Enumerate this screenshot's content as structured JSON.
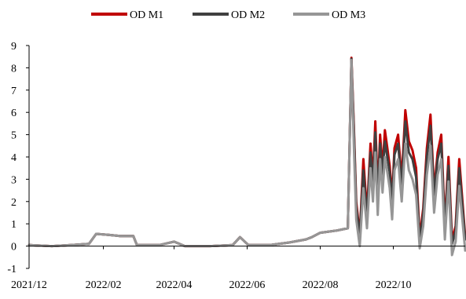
{
  "chart_data": {
    "type": "line",
    "title": "",
    "xlabel": "",
    "ylabel": "",
    "ylim": [
      -1,
      9
    ],
    "yticks": [
      -1,
      0,
      1,
      2,
      3,
      4,
      5,
      6,
      7,
      8,
      9
    ],
    "ytick_labels": [
      "-1",
      "0",
      "1",
      "2",
      "3",
      "4",
      "5",
      "6",
      "7",
      "8",
      "9"
    ],
    "xlim": [
      "2021-12-01",
      "2022-11-30"
    ],
    "xticks": [
      "2021-12-01",
      "2022-02-01",
      "2022-04-01",
      "2022-06-01",
      "2022-08-01",
      "2022-10-01"
    ],
    "xtick_labels": [
      "2021/12",
      "2022/02",
      "2022/04",
      "2022/06",
      "2022/08",
      "2022/10"
    ],
    "legend": {
      "position": "top-center"
    },
    "grid": false,
    "series": [
      {
        "name": "OD M1",
        "color": "#c00000",
        "x": [
          "2021-12-01",
          "2021-12-20",
          "2022-01-05",
          "2022-01-20",
          "2022-01-26",
          "2022-02-06",
          "2022-02-15",
          "2022-02-26",
          "2022-03-01",
          "2022-03-20",
          "2022-04-01",
          "2022-04-10",
          "2022-05-01",
          "2022-05-20",
          "2022-05-26",
          "2022-06-02",
          "2022-06-20",
          "2022-07-05",
          "2022-07-20",
          "2022-07-25",
          "2022-08-01",
          "2022-08-15",
          "2022-08-24",
          "2022-08-27",
          "2022-08-29",
          "2022-08-31",
          "2022-09-03",
          "2022-09-06",
          "2022-09-09",
          "2022-09-12",
          "2022-09-14",
          "2022-09-16",
          "2022-09-18",
          "2022-09-20",
          "2022-09-22",
          "2022-09-24",
          "2022-09-26",
          "2022-09-28",
          "2022-09-30",
          "2022-10-02",
          "2022-10-05",
          "2022-10-08",
          "2022-10-11",
          "2022-10-14",
          "2022-10-17",
          "2022-10-20",
          "2022-10-23",
          "2022-10-26",
          "2022-10-29",
          "2022-11-01",
          "2022-11-04",
          "2022-11-07",
          "2022-11-10",
          "2022-11-13",
          "2022-11-16",
          "2022-11-19",
          "2022-11-22",
          "2022-11-25",
          "2022-11-30"
        ],
        "values": [
          0.05,
          0.0,
          0.05,
          0.1,
          0.55,
          0.5,
          0.45,
          0.45,
          0.05,
          0.05,
          0.2,
          0.0,
          0.0,
          0.05,
          0.4,
          0.05,
          0.05,
          0.15,
          0.3,
          0.4,
          0.6,
          0.7,
          0.8,
          8.45,
          5.5,
          2.0,
          0.5,
          3.9,
          1.5,
          4.6,
          3.0,
          5.6,
          2.4,
          5.0,
          3.5,
          5.2,
          4.4,
          3.6,
          2.2,
          4.4,
          5.0,
          3.0,
          6.1,
          4.7,
          4.3,
          3.5,
          0.4,
          1.7,
          4.4,
          5.9,
          2.5,
          4.2,
          5.0,
          1.0,
          4.0,
          0.3,
          0.9,
          3.9,
          0.4
        ]
      },
      {
        "name": "OD M2",
        "color": "#404040",
        "x": [
          "2021-12-01",
          "2021-12-20",
          "2022-01-05",
          "2022-01-20",
          "2022-01-26",
          "2022-02-06",
          "2022-02-15",
          "2022-02-26",
          "2022-03-01",
          "2022-03-20",
          "2022-04-01",
          "2022-04-10",
          "2022-05-01",
          "2022-05-20",
          "2022-05-26",
          "2022-06-02",
          "2022-06-20",
          "2022-07-05",
          "2022-07-20",
          "2022-07-25",
          "2022-08-01",
          "2022-08-15",
          "2022-08-24",
          "2022-08-27",
          "2022-08-29",
          "2022-08-31",
          "2022-09-03",
          "2022-09-06",
          "2022-09-09",
          "2022-09-12",
          "2022-09-14",
          "2022-09-16",
          "2022-09-18",
          "2022-09-20",
          "2022-09-22",
          "2022-09-24",
          "2022-09-26",
          "2022-09-28",
          "2022-09-30",
          "2022-10-02",
          "2022-10-05",
          "2022-10-08",
          "2022-10-11",
          "2022-10-14",
          "2022-10-17",
          "2022-10-20",
          "2022-10-23",
          "2022-10-26",
          "2022-10-29",
          "2022-11-01",
          "2022-11-04",
          "2022-11-07",
          "2022-11-10",
          "2022-11-13",
          "2022-11-16",
          "2022-11-19",
          "2022-11-22",
          "2022-11-25",
          "2022-11-30"
        ],
        "values": [
          0.05,
          0.0,
          0.05,
          0.1,
          0.55,
          0.5,
          0.45,
          0.45,
          0.05,
          0.05,
          0.2,
          0.0,
          0.0,
          0.05,
          0.4,
          0.05,
          0.05,
          0.15,
          0.3,
          0.4,
          0.6,
          0.7,
          0.8,
          8.4,
          5.3,
          1.8,
          0.4,
          3.4,
          1.3,
          4.2,
          2.7,
          5.1,
          2.1,
          4.6,
          3.2,
          4.7,
          4.0,
          3.3,
          2.0,
          4.1,
          4.6,
          2.7,
          5.6,
          4.2,
          3.9,
          3.1,
          0.2,
          1.5,
          4.0,
          5.4,
          2.3,
          3.9,
          4.6,
          0.8,
          3.6,
          0.1,
          0.7,
          3.5,
          0.3
        ]
      },
      {
        "name": "OD M3",
        "color": "#969696",
        "x": [
          "2021-12-01",
          "2021-12-20",
          "2022-01-05",
          "2022-01-20",
          "2022-01-26",
          "2022-02-06",
          "2022-02-15",
          "2022-02-26",
          "2022-03-01",
          "2022-03-20",
          "2022-04-01",
          "2022-04-10",
          "2022-05-01",
          "2022-05-20",
          "2022-05-26",
          "2022-06-02",
          "2022-06-20",
          "2022-07-05",
          "2022-07-20",
          "2022-07-25",
          "2022-08-01",
          "2022-08-15",
          "2022-08-24",
          "2022-08-27",
          "2022-08-29",
          "2022-08-31",
          "2022-09-03",
          "2022-09-06",
          "2022-09-09",
          "2022-09-12",
          "2022-09-14",
          "2022-09-16",
          "2022-09-18",
          "2022-09-20",
          "2022-09-22",
          "2022-09-24",
          "2022-09-26",
          "2022-09-28",
          "2022-09-30",
          "2022-10-02",
          "2022-10-05",
          "2022-10-08",
          "2022-10-11",
          "2022-10-14",
          "2022-10-17",
          "2022-10-20",
          "2022-10-23",
          "2022-10-26",
          "2022-10-29",
          "2022-11-01",
          "2022-11-04",
          "2022-11-07",
          "2022-11-10",
          "2022-11-13",
          "2022-11-16",
          "2022-11-19",
          "2022-11-22",
          "2022-11-25",
          "2022-11-30"
        ],
        "values": [
          0.05,
          0.0,
          0.05,
          0.1,
          0.55,
          0.5,
          0.45,
          0.45,
          0.05,
          0.05,
          0.2,
          0.0,
          0.0,
          0.05,
          0.4,
          0.05,
          0.05,
          0.15,
          0.3,
          0.4,
          0.6,
          0.7,
          0.8,
          8.35,
          4.6,
          1.2,
          0.0,
          2.6,
          0.8,
          3.5,
          2.0,
          4.2,
          1.4,
          3.9,
          2.4,
          4.0,
          3.3,
          2.6,
          1.2,
          3.4,
          3.9,
          2.0,
          4.6,
          3.4,
          3.0,
          2.3,
          -0.1,
          0.9,
          3.2,
          4.5,
          1.5,
          3.2,
          3.9,
          0.3,
          2.9,
          -0.4,
          0.2,
          2.7,
          -0.2
        ]
      }
    ]
  }
}
